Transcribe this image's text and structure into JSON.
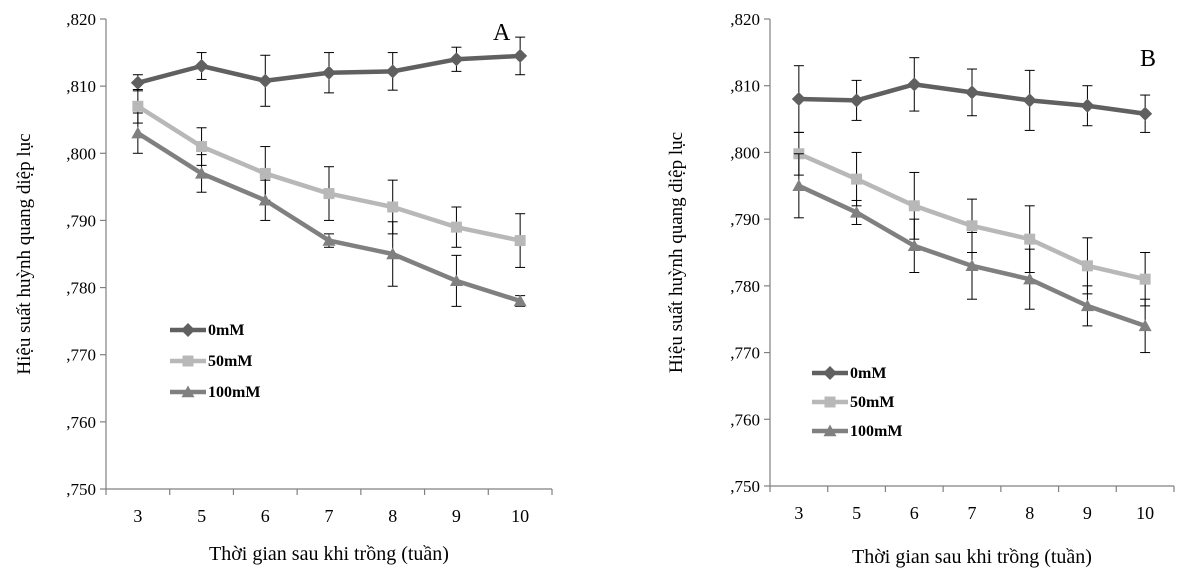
{
  "chart_data": [
    {
      "type": "line",
      "panel_label": "A",
      "categories": [
        "3",
        "5",
        "6",
        "7",
        "8",
        "9",
        "10"
      ],
      "ylabel": "Hiệu suất huỳnh quang diệp lục",
      "xlabel": "Thời gian sau khi trồng (tuần)",
      "ylim": [
        0.75,
        0.82
      ],
      "yticks": [
        {
          "v": 0.75,
          "label": ",750"
        },
        {
          "v": 0.76,
          "label": ",760"
        },
        {
          "v": 0.77,
          "label": ",770"
        },
        {
          "v": 0.78,
          "label": ",780"
        },
        {
          "v": 0.79,
          "label": ",790"
        },
        {
          "v": 0.8,
          "label": ",800"
        },
        {
          "v": 0.81,
          "label": ",810"
        },
        {
          "v": 0.82,
          "label": ",820"
        }
      ],
      "legend_position": "left-middle",
      "series": [
        {
          "name": "0mM",
          "color": "#606060",
          "marker": "diamond",
          "values": [
            0.8105,
            0.813,
            0.8108,
            0.812,
            0.8122,
            0.814,
            0.8145
          ],
          "errors": [
            0.0012,
            0.002,
            0.0038,
            0.003,
            0.0028,
            0.0018,
            0.0028
          ]
        },
        {
          "name": "50mM",
          "color": "#b8b8b8",
          "marker": "square",
          "values": [
            0.807,
            0.801,
            0.797,
            0.794,
            0.792,
            0.789,
            0.787
          ],
          "errors": [
            0.0025,
            0.0028,
            0.004,
            0.004,
            0.004,
            0.003,
            0.004
          ]
        },
        {
          "name": "100mM",
          "color": "#808080",
          "marker": "triangle",
          "values": [
            0.803,
            0.797,
            0.793,
            0.787,
            0.785,
            0.781,
            0.778
          ],
          "errors": [
            0.003,
            0.0028,
            0.003,
            0.001,
            0.0048,
            0.0038,
            0.0008
          ]
        }
      ]
    },
    {
      "type": "line",
      "panel_label": "B",
      "categories": [
        "3",
        "5",
        "6",
        "7",
        "8",
        "9",
        "10"
      ],
      "ylabel": "Hiệu suất huỳnh quang diệp lục",
      "xlabel": "Thời gian sau khi trồng (tuần)",
      "ylim": [
        0.75,
        0.82
      ],
      "yticks": [
        {
          "v": 0.75,
          "label": ",750"
        },
        {
          "v": 0.76,
          "label": ",760"
        },
        {
          "v": 0.77,
          "label": ",770"
        },
        {
          "v": 0.78,
          "label": ",780"
        },
        {
          "v": 0.79,
          "label": ",790"
        },
        {
          "v": 0.8,
          "label": ",800"
        },
        {
          "v": 0.81,
          "label": ",810"
        },
        {
          "v": 0.82,
          "label": ",820"
        }
      ],
      "legend_position": "bottom-left",
      "series": [
        {
          "name": "0mM",
          "color": "#606060",
          "marker": "diamond",
          "values": [
            0.808,
            0.8078,
            0.8102,
            0.809,
            0.8078,
            0.807,
            0.8058
          ],
          "errors": [
            0.005,
            0.003,
            0.004,
            0.0035,
            0.0045,
            0.003,
            0.0028
          ]
        },
        {
          "name": "50mM",
          "color": "#b8b8b8",
          "marker": "square",
          "values": [
            0.7998,
            0.796,
            0.792,
            0.789,
            0.787,
            0.783,
            0.781
          ],
          "errors": [
            0.0032,
            0.004,
            0.005,
            0.004,
            0.005,
            0.0042,
            0.004
          ]
        },
        {
          "name": "100mM",
          "color": "#808080",
          "marker": "triangle",
          "values": [
            0.795,
            0.791,
            0.786,
            0.783,
            0.781,
            0.777,
            0.774
          ],
          "errors": [
            0.0048,
            0.0018,
            0.004,
            0.005,
            0.0045,
            0.003,
            0.004
          ]
        }
      ]
    }
  ]
}
